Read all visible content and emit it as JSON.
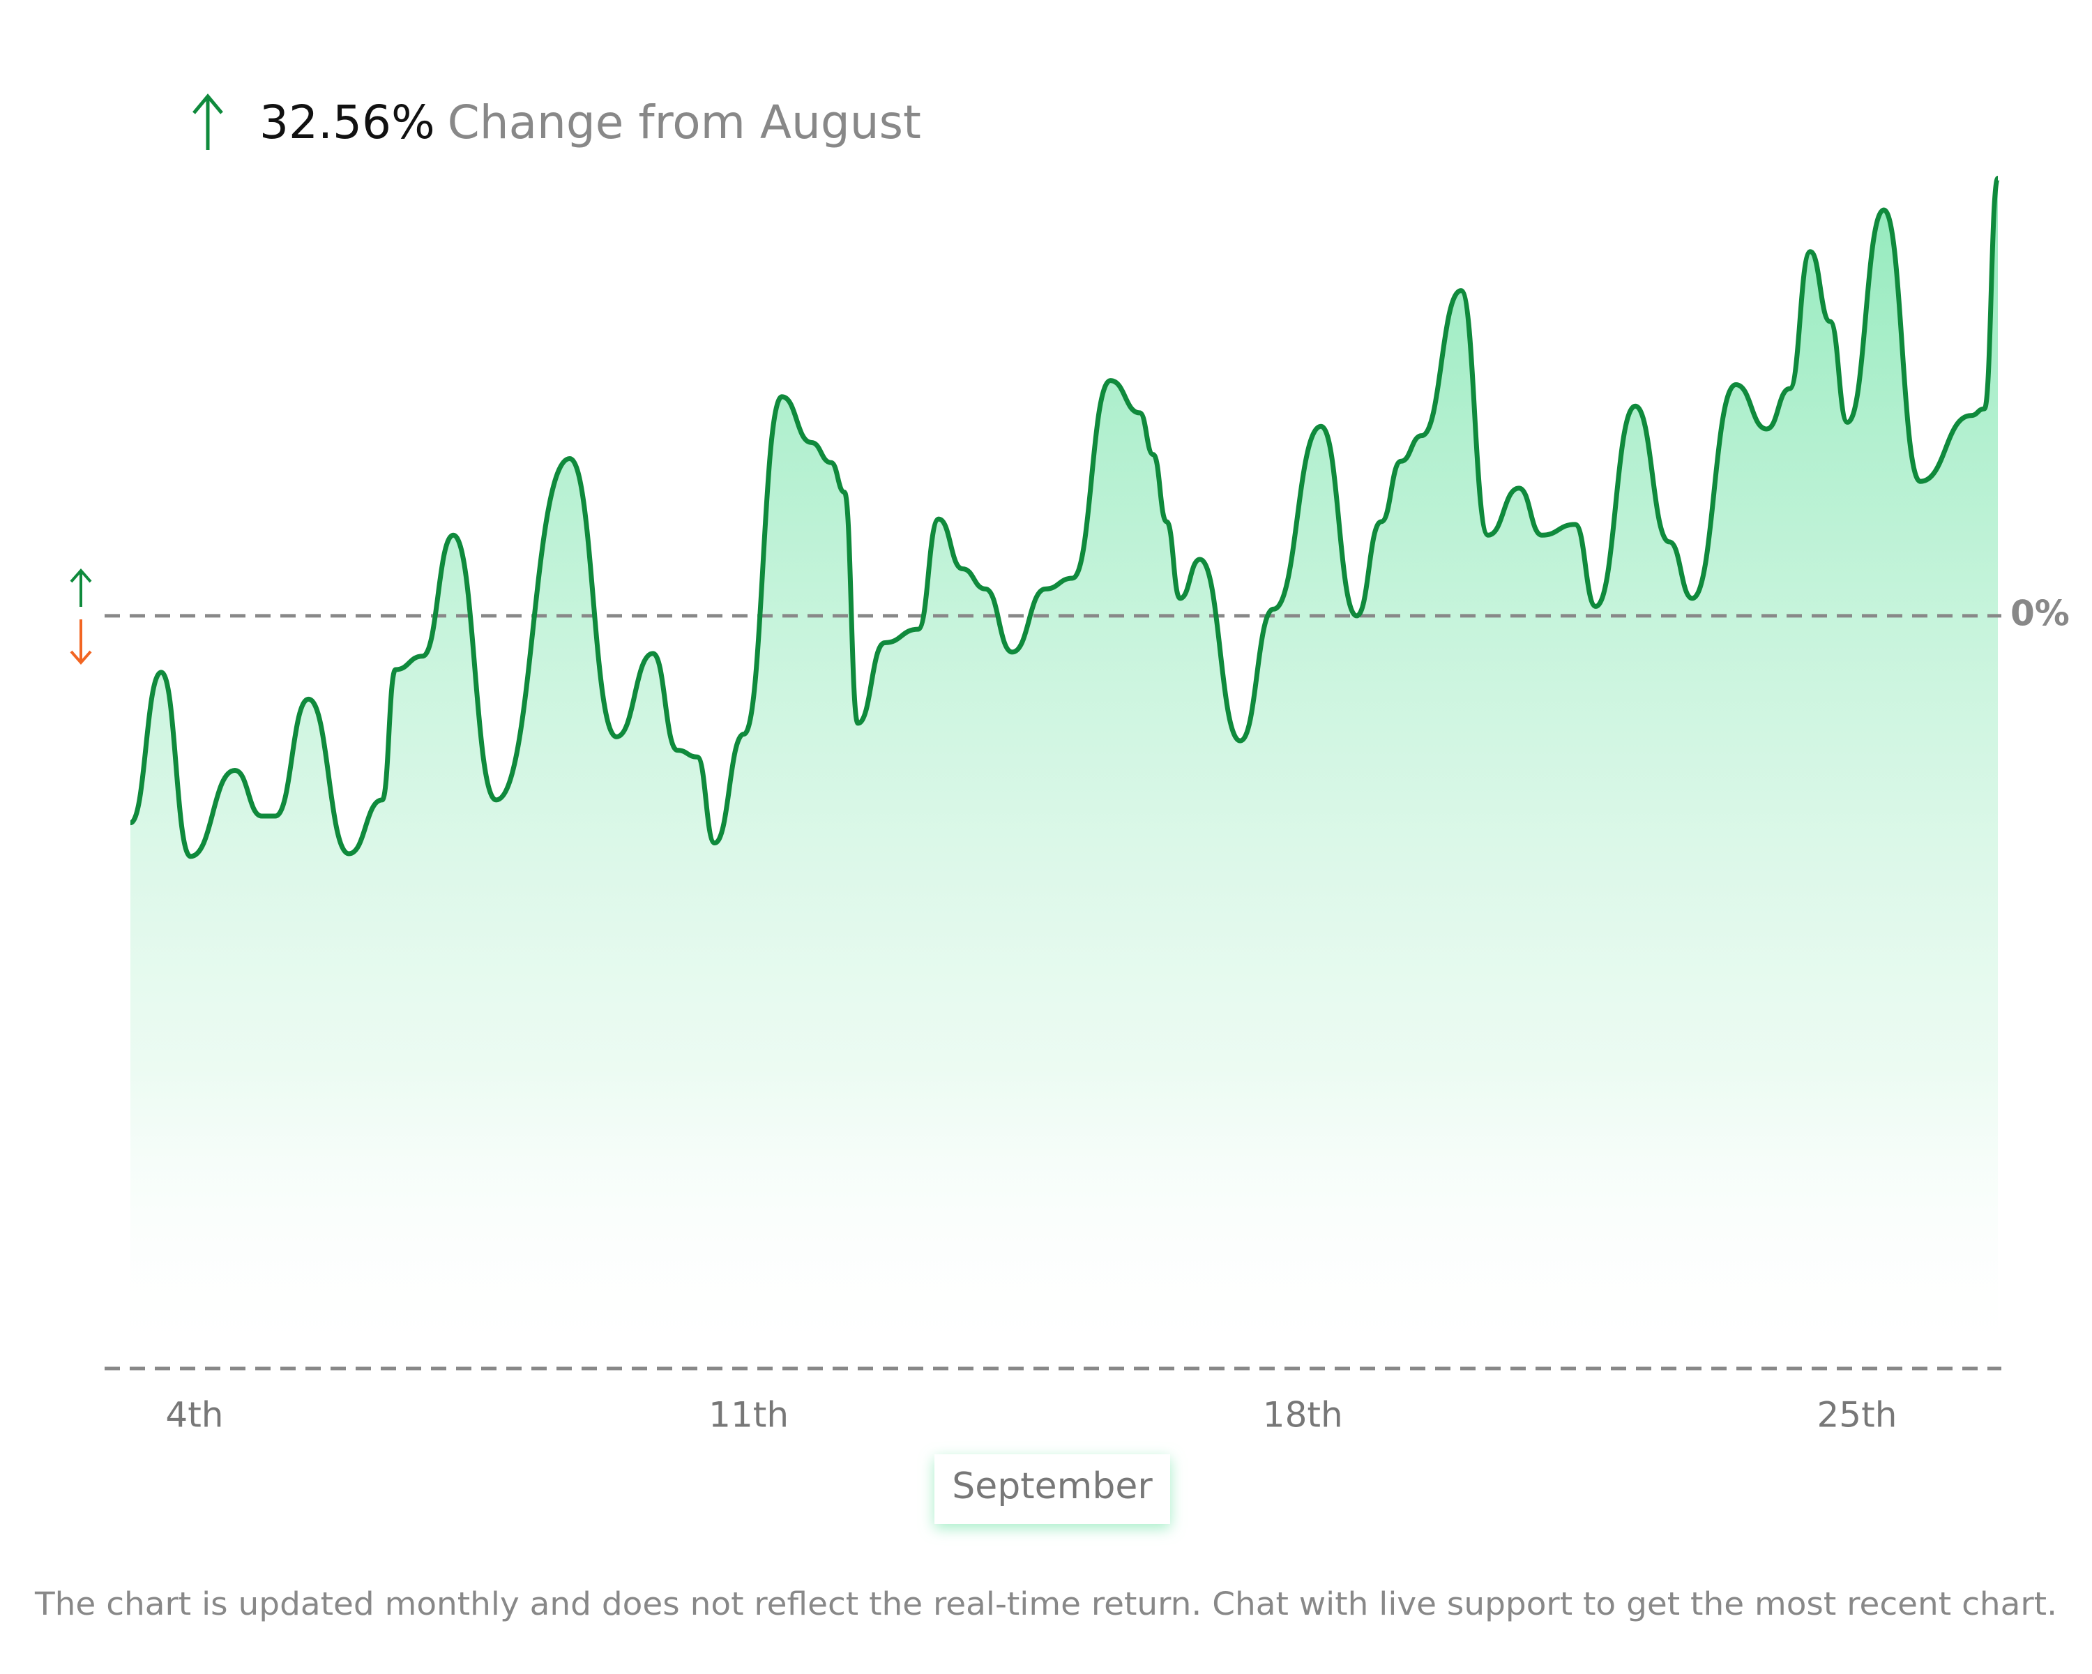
{
  "chart_data": {
    "type": "line",
    "change": "32.56%",
    "title": "Change from August",
    "xlabel": "September",
    "note": "The chart is updated monthly and does not reflect the real-time return. Chat with live support to get the most recent chart.",
    "color": "#0f8a3c",
    "x": [
      3.19,
      3.58,
      3.95,
      4.51,
      4.85,
      5.02,
      5.44,
      5.95,
      6.37,
      6.54,
      6.88,
      7.27,
      7.81,
      8.74,
      9.33,
      9.79,
      10.1,
      10.35,
      10.57,
      10.94,
      11.42,
      11.79,
      12.04,
      12.21,
      12.38,
      12.72,
      13.14,
      13.4,
      13.7,
      13.99,
      14.33,
      14.75,
      15.09,
      15.57,
      15.94,
      16.11,
      16.28,
      16.45,
      16.7,
      17.21,
      17.63,
      18.23,
      18.68,
      18.99,
      19.24,
      19.5,
      20.0,
      20.34,
      20.73,
      21.02,
      21.44,
      21.7,
      22.2,
      22.63,
      22.92,
      23.47,
      23.86,
      24.15,
      24.41,
      24.66,
      24.88,
      25.34,
      25.8,
      26.44,
      26.61,
      26.78
    ],
    "values": [
      -15.4,
      -4.2,
      -17.9,
      -11.5,
      -14.9,
      -14.9,
      -6.2,
      -17.7,
      -13.7,
      -4.0,
      -3.0,
      6.0,
      -13.7,
      11.7,
      -9.0,
      -2.8,
      -10.0,
      -10.5,
      -16.9,
      -8.8,
      16.3,
      12.9,
      11.4,
      9.2,
      -8.0,
      -2.0,
      -1.0,
      7.2,
      3.5,
      2.0,
      -2.7,
      2.0,
      2.8,
      17.5,
      15.1,
      12.0,
      7.0,
      1.3,
      4.2,
      -9.3,
      0.5,
      14.1,
      0,
      7.0,
      11.5,
      13.4,
      24.2,
      6.0,
      9.5,
      6.0,
      6.8,
      0.7,
      15.6,
      5.5,
      1.3,
      17.2,
      13.9,
      16.9,
      27.1,
      21.9,
      14.4,
      30.2,
      10.0,
      14.9,
      15.4,
      32.56
    ],
    "xlim": [
      3.19,
      26.78
    ],
    "xticks": [
      {
        "value": 4,
        "label": "4th"
      },
      {
        "value": 11,
        "label": "11th"
      },
      {
        "value": 18,
        "label": "18th"
      },
      {
        "value": 25,
        "label": "25th"
      }
    ],
    "ylim": [
      -56,
      33
    ],
    "yticks": [
      {
        "value": 0,
        "label": "0%"
      }
    ],
    "grid": true
  }
}
